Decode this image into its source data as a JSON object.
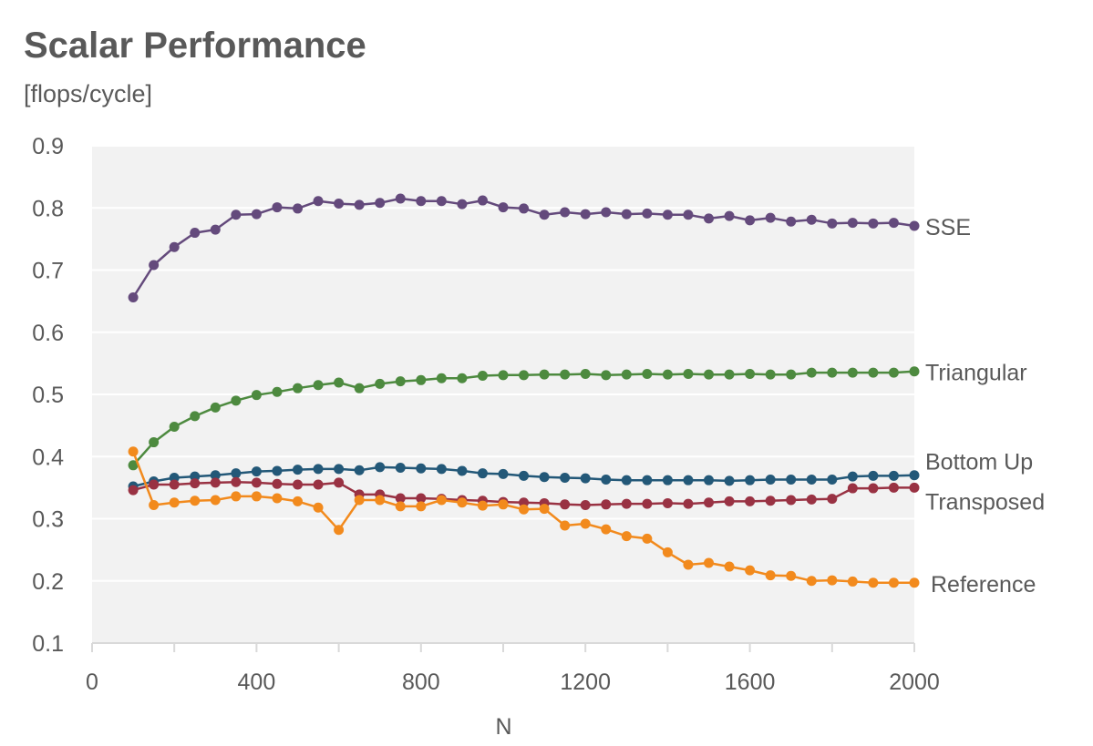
{
  "chart_data": {
    "type": "line",
    "title": "Scalar Performance",
    "subtitle": "[flops/cycle]",
    "xlabel": "N",
    "ylabel": "",
    "xlim": [
      0,
      2000
    ],
    "ylim": [
      0.1,
      0.9
    ],
    "xticks": [
      0,
      400,
      800,
      1200,
      1600,
      2000
    ],
    "yticks": [
      0.1,
      0.2,
      0.3,
      0.4,
      0.5,
      0.6,
      0.7,
      0.8,
      0.9
    ],
    "grid": "horizontal",
    "legend": "inline-right",
    "x": [
      100,
      150,
      200,
      250,
      300,
      350,
      400,
      450,
      500,
      550,
      600,
      650,
      700,
      750,
      800,
      850,
      900,
      950,
      1000,
      1050,
      1100,
      1150,
      1200,
      1250,
      1300,
      1350,
      1400,
      1450,
      1500,
      1550,
      1600,
      1650,
      1700,
      1750,
      1800,
      1850,
      1900,
      1950,
      2000
    ],
    "series": [
      {
        "name": "SSE",
        "color": "#644a7c",
        "values": [
          0.656,
          0.708,
          0.737,
          0.76,
          0.765,
          0.789,
          0.79,
          0.801,
          0.799,
          0.811,
          0.807,
          0.805,
          0.808,
          0.815,
          0.811,
          0.811,
          0.806,
          0.812,
          0.801,
          0.799,
          0.789,
          0.793,
          0.79,
          0.793,
          0.79,
          0.791,
          0.789,
          0.789,
          0.783,
          0.787,
          0.78,
          0.784,
          0.778,
          0.781,
          0.775,
          0.776,
          0.775,
          0.776,
          0.771
        ]
      },
      {
        "name": "Triangular",
        "color": "#4d8a3f",
        "values": [
          0.386,
          0.423,
          0.448,
          0.465,
          0.479,
          0.49,
          0.499,
          0.504,
          0.51,
          0.515,
          0.519,
          0.51,
          0.517,
          0.521,
          0.523,
          0.526,
          0.526,
          0.53,
          0.531,
          0.531,
          0.532,
          0.532,
          0.533,
          0.531,
          0.532,
          0.533,
          0.532,
          0.533,
          0.532,
          0.532,
          0.533,
          0.532,
          0.532,
          0.535,
          0.535,
          0.535,
          0.535,
          0.535,
          0.537
        ]
      },
      {
        "name": "Bottom Up",
        "color": "#235878",
        "values": [
          0.352,
          0.36,
          0.366,
          0.368,
          0.37,
          0.373,
          0.376,
          0.377,
          0.379,
          0.38,
          0.38,
          0.378,
          0.383,
          0.382,
          0.381,
          0.38,
          0.377,
          0.373,
          0.372,
          0.369,
          0.367,
          0.366,
          0.365,
          0.363,
          0.362,
          0.362,
          0.362,
          0.362,
          0.362,
          0.361,
          0.362,
          0.363,
          0.363,
          0.363,
          0.363,
          0.368,
          0.369,
          0.369,
          0.37
        ]
      },
      {
        "name": "Transposed",
        "color": "#993243",
        "values": [
          0.346,
          0.355,
          0.355,
          0.357,
          0.358,
          0.359,
          0.358,
          0.356,
          0.355,
          0.355,
          0.358,
          0.339,
          0.339,
          0.333,
          0.333,
          0.332,
          0.33,
          0.329,
          0.327,
          0.326,
          0.325,
          0.323,
          0.322,
          0.323,
          0.324,
          0.324,
          0.325,
          0.324,
          0.326,
          0.328,
          0.328,
          0.329,
          0.33,
          0.331,
          0.332,
          0.349,
          0.349,
          0.35,
          0.35
        ]
      },
      {
        "name": "Reference",
        "color": "#f28a1d",
        "values": [
          0.408,
          0.322,
          0.326,
          0.329,
          0.33,
          0.336,
          0.336,
          0.333,
          0.328,
          0.318,
          0.282,
          0.33,
          0.33,
          0.32,
          0.32,
          0.33,
          0.326,
          0.321,
          0.323,
          0.315,
          0.316,
          0.289,
          0.292,
          0.283,
          0.272,
          0.268,
          0.246,
          0.226,
          0.229,
          0.223,
          0.217,
          0.209,
          0.208,
          0.2,
          0.201,
          0.199,
          0.197,
          0.197,
          0.197
        ]
      }
    ]
  }
}
